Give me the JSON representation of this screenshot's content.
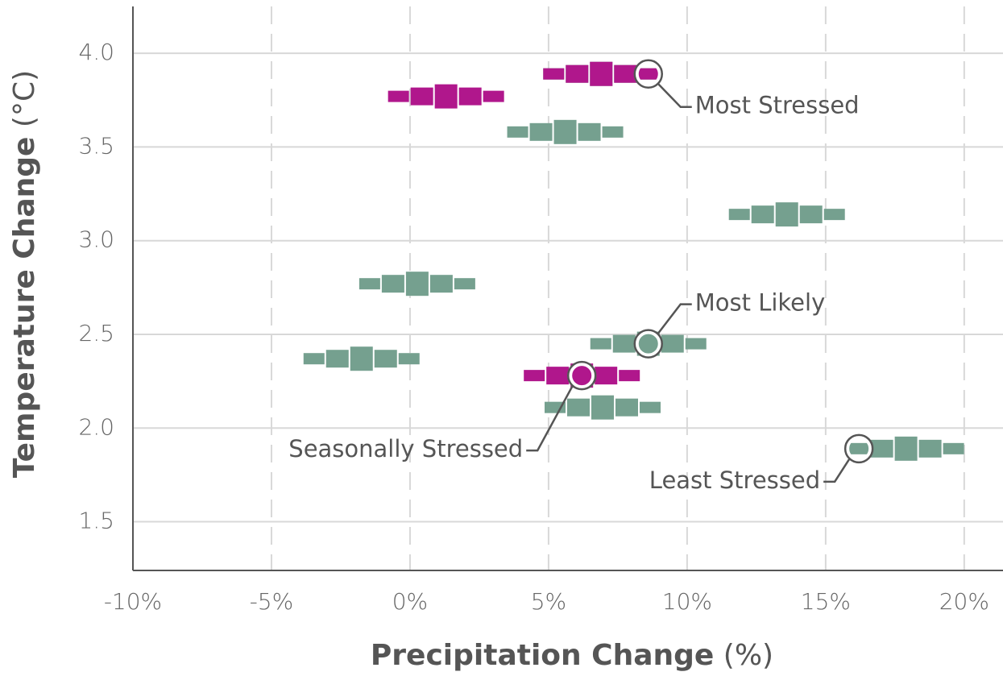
{
  "chart_data": {
    "type": "scatter",
    "x_label": "Precipitation Change",
    "x_unit": "(%)",
    "y_label": "Temperature Change",
    "y_unit": "(°C)",
    "xlim": [
      -10,
      21.4
    ],
    "ylim": [
      1.24,
      4.25
    ],
    "xticks": [
      {
        "value": -10,
        "label": "-10%"
      },
      {
        "value": -5,
        "label": "-5%"
      },
      {
        "value": 0,
        "label": "0%"
      },
      {
        "value": 5,
        "label": "5%"
      },
      {
        "value": 10,
        "label": "10%"
      },
      {
        "value": 15,
        "label": "15%"
      },
      {
        "value": 20,
        "label": "20%"
      }
    ],
    "yticks": [
      1.5,
      {
        "value": 2,
        "label": "2.0"
      },
      2.5,
      {
        "value": 3,
        "label": "3.0"
      },
      3.5,
      {
        "value": 4,
        "label": "4.0"
      }
    ],
    "grid": true,
    "series": [
      {
        "color": "#75a08f",
        "x": [
          6.9,
          5.6,
          13.6,
          0.26,
          -1.75,
          8.6,
          6.95,
          17.9
        ],
        "y": [
          3.89,
          3.58,
          3.14,
          2.77,
          2.37,
          2.45,
          2.11,
          1.89
        ]
      },
      {
        "color": "#b0178c",
        "x": [
          6.9,
          1.3,
          6.2
        ],
        "y": [
          3.89,
          3.77,
          2.28
        ]
      }
    ],
    "annotations": [
      {
        "text": "Most Stressed",
        "x": 8.6,
        "y": 3.89
      },
      {
        "text": "Most Likely",
        "x": 8.6,
        "y": 2.45
      },
      {
        "text": "Seasonally Stressed",
        "x": 6.2,
        "y": 2.28
      },
      {
        "text": "Least Stressed",
        "x": 16.2,
        "y": 1.89
      }
    ]
  }
}
